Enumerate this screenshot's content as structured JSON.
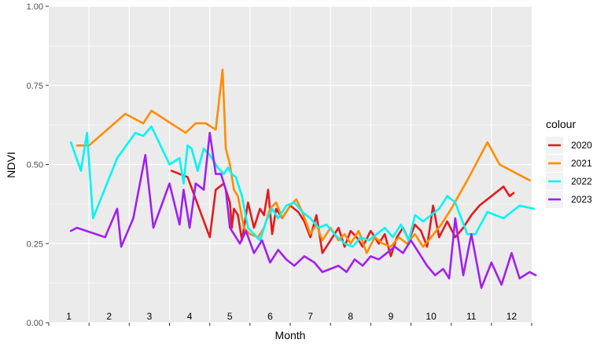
{
  "chart_data": {
    "type": "line",
    "xlabel": "Month",
    "ylabel": "NDVI",
    "xlim": [
      0.5,
      12.5
    ],
    "ylim": [
      0,
      1
    ],
    "yticks": [
      0.0,
      0.25,
      0.5,
      0.75,
      1.0
    ],
    "ytick_labels": [
      "0.00",
      "0.25",
      "0.50",
      "0.75",
      "1.00"
    ],
    "month_labels": [
      "1",
      "2",
      "3",
      "4",
      "5",
      "6",
      "7",
      "8",
      "9",
      "10",
      "11",
      "12"
    ],
    "grid": true,
    "legend": {
      "title": "colour",
      "placement": "right",
      "entries": [
        "2020",
        "2021",
        "2022",
        "2023"
      ]
    },
    "series": [
      {
        "name": "2020",
        "color": "#e41a1c",
        "x": [
          3.55,
          3.95,
          4.5,
          4.65,
          4.85,
          5.0,
          5.05,
          5.1,
          5.2,
          5.3,
          5.45,
          5.6,
          5.75,
          5.85,
          5.95,
          6.05,
          6.15,
          6.3,
          6.5,
          6.7,
          6.85,
          7.0,
          7.15,
          7.3,
          7.5,
          7.7,
          7.85,
          8.0,
          8.15,
          8.3,
          8.5,
          8.7,
          8.85,
          9.0,
          9.15,
          9.3,
          9.45,
          9.6,
          9.75,
          9.9,
          10.05,
          10.2,
          10.4,
          10.6,
          10.8,
          11.0,
          11.2,
          11.5,
          11.8,
          11.95,
          12.05
        ],
        "y": [
          0.48,
          0.46,
          0.27,
          0.42,
          0.44,
          0.38,
          0.3,
          0.36,
          0.34,
          0.26,
          0.38,
          0.3,
          0.36,
          0.34,
          0.42,
          0.28,
          0.36,
          0.33,
          0.37,
          0.35,
          0.32,
          0.27,
          0.34,
          0.22,
          0.26,
          0.3,
          0.24,
          0.29,
          0.27,
          0.24,
          0.29,
          0.25,
          0.28,
          0.21,
          0.27,
          0.3,
          0.26,
          0.31,
          0.29,
          0.24,
          0.37,
          0.27,
          0.32,
          0.27,
          0.3,
          0.34,
          0.37,
          0.4,
          0.43,
          0.4,
          0.41
        ]
      },
      {
        "name": "2021",
        "color": "#ff8c00",
        "x": [
          1.2,
          1.5,
          2.4,
          2.85,
          3.05,
          3.9,
          4.15,
          4.4,
          4.65,
          4.82,
          4.9,
          5.0,
          5.1,
          5.2,
          5.35,
          5.5,
          5.7,
          5.85,
          6.0,
          6.15,
          6.3,
          6.5,
          6.65,
          6.8,
          7.0,
          7.15,
          7.3,
          7.5,
          7.7,
          7.85,
          8.0,
          8.2,
          8.4,
          8.6,
          8.8,
          9.0,
          9.2,
          9.4,
          9.6,
          9.8,
          10.0,
          10.25,
          10.5,
          10.9,
          11.4,
          11.7,
          12.45
        ],
        "y": [
          0.56,
          0.56,
          0.66,
          0.63,
          0.67,
          0.6,
          0.63,
          0.63,
          0.61,
          0.8,
          0.55,
          0.5,
          0.42,
          0.4,
          0.3,
          0.28,
          0.27,
          0.3,
          0.36,
          0.38,
          0.33,
          0.37,
          0.39,
          0.35,
          0.28,
          0.31,
          0.26,
          0.3,
          0.26,
          0.28,
          0.25,
          0.29,
          0.22,
          0.27,
          0.25,
          0.24,
          0.27,
          0.25,
          0.28,
          0.24,
          0.27,
          0.31,
          0.36,
          0.45,
          0.57,
          0.5,
          0.45
        ]
      },
      {
        "name": "2022",
        "color": "#00f5f5",
        "x": [
          1.05,
          1.3,
          1.45,
          1.6,
          2.2,
          2.65,
          2.85,
          3.05,
          3.5,
          3.75,
          3.85,
          3.95,
          4.05,
          4.2,
          4.35,
          4.5,
          4.7,
          4.85,
          4.95,
          5.05,
          5.15,
          5.3,
          5.45,
          5.6,
          5.75,
          5.9,
          6.05,
          6.2,
          6.4,
          6.6,
          6.8,
          7.0,
          7.2,
          7.4,
          7.6,
          7.85,
          8.05,
          8.25,
          8.45,
          8.65,
          8.85,
          9.05,
          9.25,
          9.45,
          9.6,
          9.8,
          10.0,
          10.2,
          10.4,
          10.6,
          10.9,
          11.1,
          11.4,
          11.8,
          12.2,
          12.55
        ],
        "y": [
          0.57,
          0.48,
          0.6,
          0.33,
          0.52,
          0.6,
          0.59,
          0.62,
          0.5,
          0.52,
          0.44,
          0.56,
          0.55,
          0.48,
          0.55,
          0.53,
          0.49,
          0.47,
          0.49,
          0.47,
          0.46,
          0.4,
          0.3,
          0.28,
          0.26,
          0.32,
          0.36,
          0.33,
          0.37,
          0.38,
          0.35,
          0.33,
          0.3,
          0.31,
          0.28,
          0.25,
          0.24,
          0.27,
          0.26,
          0.28,
          0.3,
          0.27,
          0.31,
          0.26,
          0.34,
          0.32,
          0.34,
          0.36,
          0.4,
          0.38,
          0.28,
          0.28,
          0.35,
          0.33,
          0.37,
          0.36
        ]
      },
      {
        "name": "2023",
        "color": "#a020f0",
        "x": [
          1.05,
          1.2,
          1.9,
          2.2,
          2.3,
          2.6,
          2.9,
          3.1,
          3.5,
          3.75,
          3.85,
          4.0,
          4.15,
          4.35,
          4.5,
          4.65,
          4.78,
          4.9,
          5.0,
          5.1,
          5.25,
          5.4,
          5.6,
          5.8,
          6.0,
          6.2,
          6.4,
          6.6,
          6.85,
          7.1,
          7.3,
          7.5,
          7.7,
          7.9,
          8.1,
          8.3,
          8.5,
          8.7,
          8.9,
          9.1,
          9.3,
          9.5,
          9.7,
          9.9,
          10.1,
          10.3,
          10.45,
          10.6,
          10.8,
          11.0,
          11.25,
          11.5,
          11.75,
          12.0,
          12.2,
          12.45,
          12.6
        ],
        "y": [
          0.29,
          0.3,
          0.27,
          0.36,
          0.24,
          0.33,
          0.53,
          0.3,
          0.44,
          0.31,
          0.42,
          0.3,
          0.44,
          0.42,
          0.6,
          0.47,
          0.47,
          0.42,
          0.3,
          0.28,
          0.25,
          0.29,
          0.22,
          0.26,
          0.19,
          0.23,
          0.2,
          0.18,
          0.21,
          0.19,
          0.16,
          0.17,
          0.18,
          0.16,
          0.2,
          0.18,
          0.21,
          0.2,
          0.22,
          0.24,
          0.22,
          0.26,
          0.22,
          0.18,
          0.15,
          0.17,
          0.14,
          0.33,
          0.15,
          0.28,
          0.11,
          0.19,
          0.12,
          0.22,
          0.14,
          0.16,
          0.15
        ]
      }
    ]
  }
}
